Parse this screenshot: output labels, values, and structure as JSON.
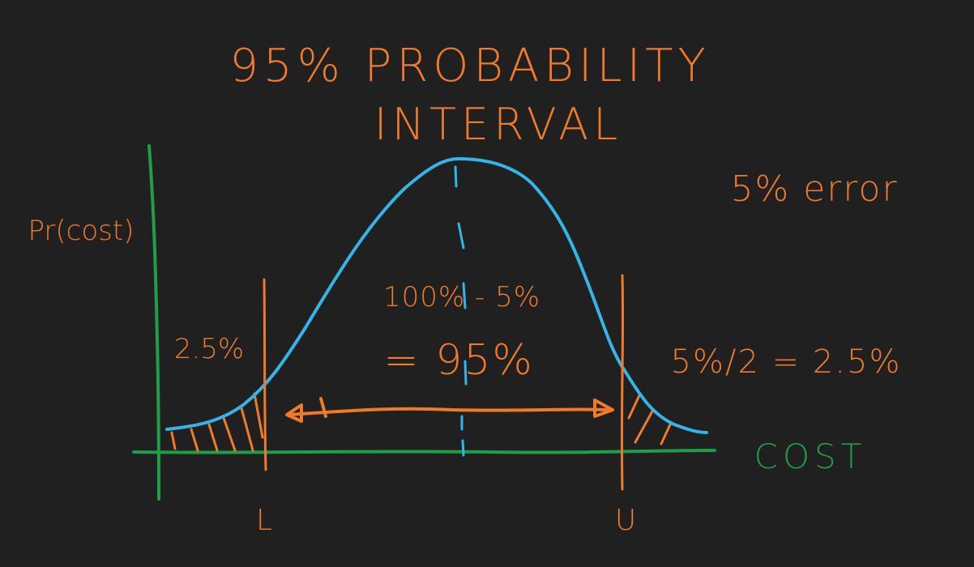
{
  "title": {
    "line1": "95% PROBABILITY",
    "line2": "INTERVAL"
  },
  "error_note": "5% error",
  "y_axis_label": "Pr(cost)",
  "x_axis_label": "COST",
  "left_tail_label": "2.5%",
  "center_label_line1": "100% - 5%",
  "center_label_line2": "= 95%",
  "right_tail_label": "5%/2 = 2.5%",
  "lower_bound_label": "L",
  "upper_bound_label": "U",
  "colors": {
    "background": "#202020",
    "annotation": "#f07a2c",
    "axis": "#1f9e48",
    "curve": "#35b4e8"
  }
}
